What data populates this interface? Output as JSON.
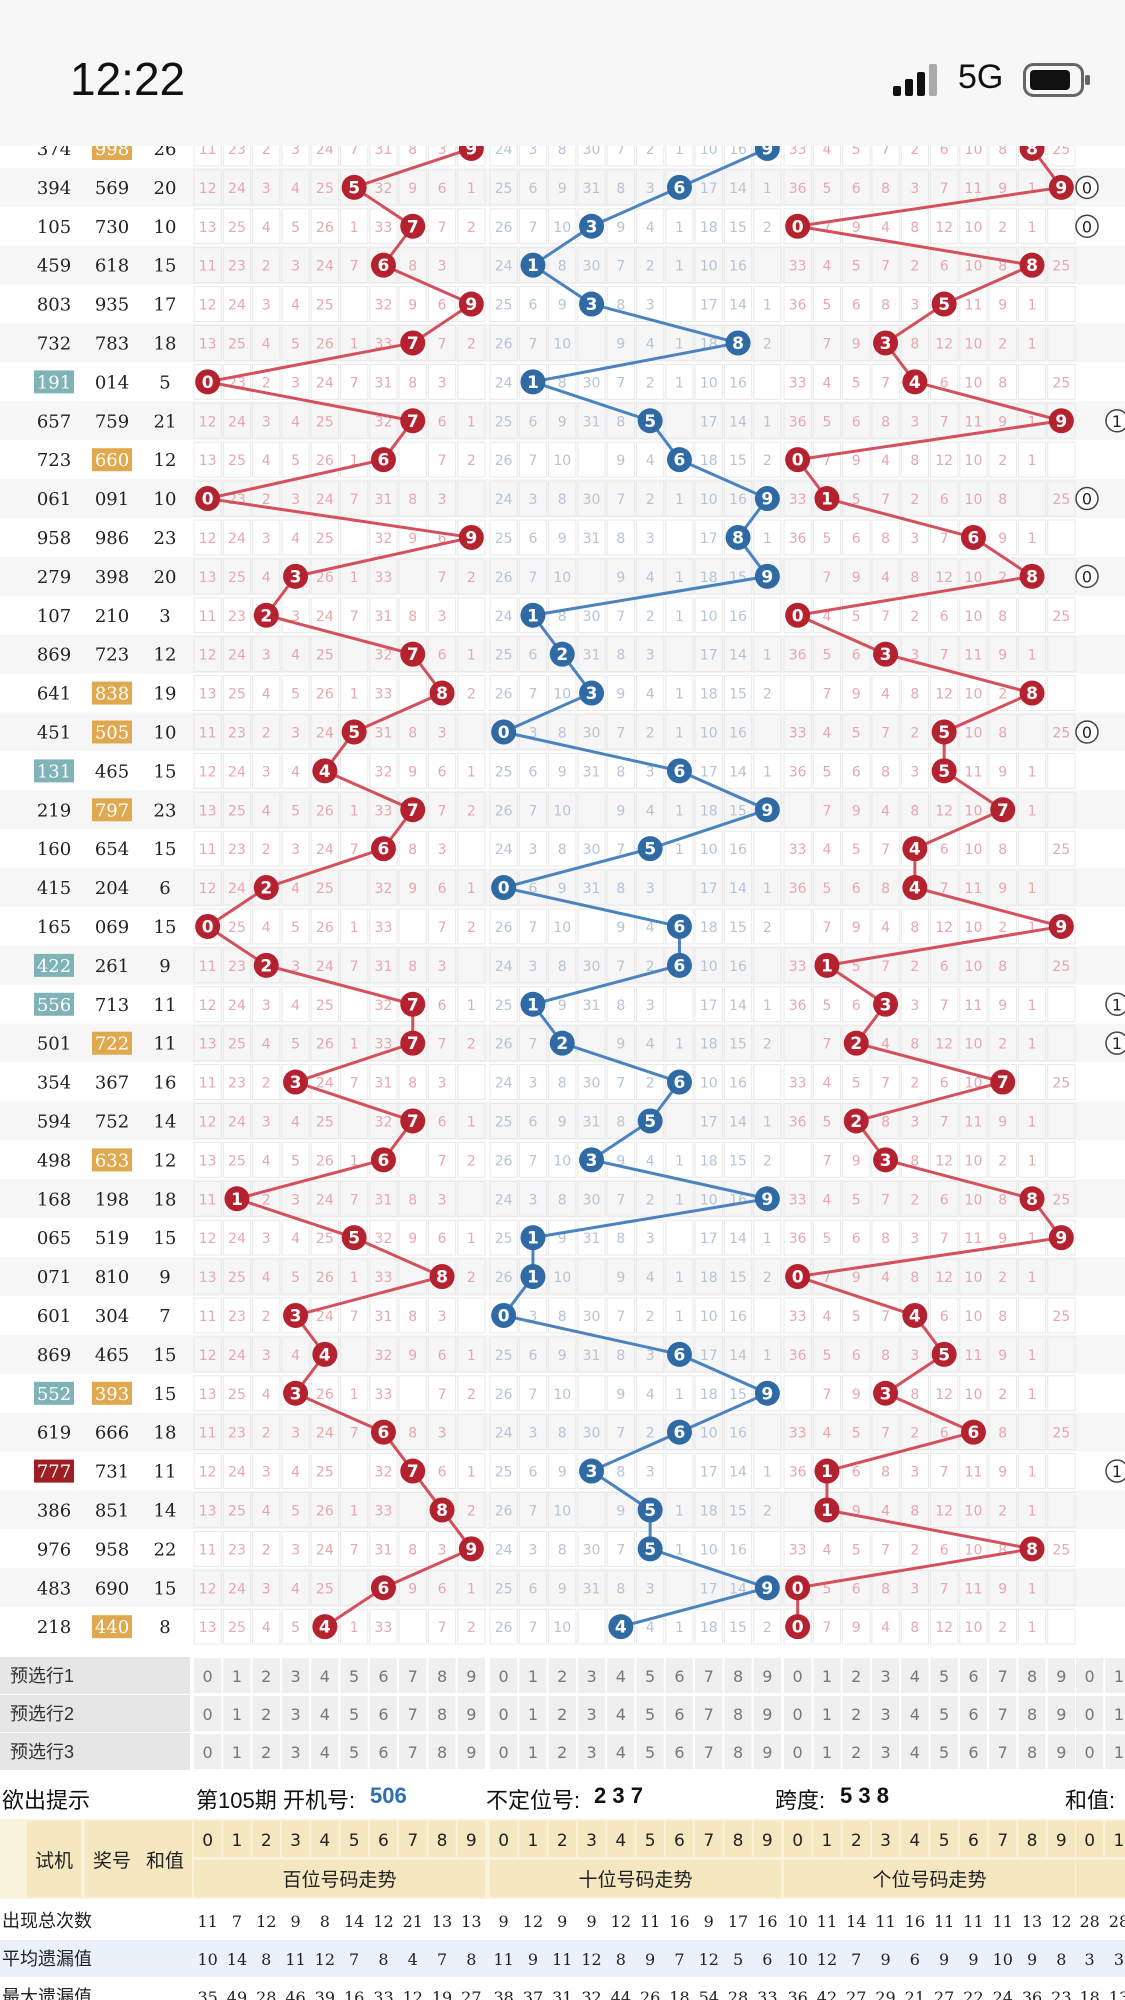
{
  "status": {
    "time": "12:22",
    "network": "5G"
  },
  "trend": {
    "rows": [
      [
        "374",
        "998",
        "26"
      ],
      [
        "394",
        "569",
        "20"
      ],
      [
        "105",
        "730",
        "10"
      ],
      [
        "459",
        "618",
        "15"
      ],
      [
        "803",
        "935",
        "17"
      ],
      [
        "732",
        "783",
        "18"
      ],
      [
        "191",
        "014",
        "5"
      ],
      [
        "657",
        "759",
        "21"
      ],
      [
        "723",
        "660",
        "12"
      ],
      [
        "061",
        "091",
        "10"
      ],
      [
        "958",
        "986",
        "23"
      ],
      [
        "279",
        "398",
        "20"
      ],
      [
        "107",
        "210",
        "3"
      ],
      [
        "869",
        "723",
        "12"
      ],
      [
        "641",
        "838",
        "19"
      ],
      [
        "451",
        "505",
        "10"
      ],
      [
        "131",
        "465",
        "15"
      ],
      [
        "219",
        "797",
        "23"
      ],
      [
        "160",
        "654",
        "15"
      ],
      [
        "415",
        "204",
        "6"
      ],
      [
        "165",
        "069",
        "15"
      ],
      [
        "422",
        "261",
        "9"
      ],
      [
        "556",
        "713",
        "11"
      ],
      [
        "501",
        "722",
        "11"
      ],
      [
        "354",
        "367",
        "16"
      ],
      [
        "594",
        "752",
        "14"
      ],
      [
        "498",
        "633",
        "12"
      ],
      [
        "168",
        "198",
        "18"
      ],
      [
        "065",
        "519",
        "15"
      ],
      [
        "071",
        "810",
        "9"
      ],
      [
        "601",
        "304",
        "7"
      ],
      [
        "869",
        "465",
        "15"
      ],
      [
        "552",
        "393",
        "15"
      ],
      [
        "619",
        "666",
        "18"
      ],
      [
        "777",
        "731",
        "11"
      ],
      [
        "386",
        "851",
        "14"
      ],
      [
        "976",
        "958",
        "22"
      ],
      [
        "483",
        "690",
        "15"
      ],
      [
        "218",
        "440",
        "8"
      ]
    ],
    "hl_test": {
      "191": "teal",
      "131": "teal",
      "422": "teal",
      "556": "teal",
      "552": "teal",
      "777": "red"
    },
    "hl_prize": {
      "998": "orange",
      "660": "orange",
      "838": "orange",
      "505": "orange",
      "797": "orange",
      "722": "orange",
      "633": "orange",
      "393": "orange",
      "440": "orange"
    },
    "miss_sample": [
      [
        "11",
        "23",
        "2",
        "3",
        "24",
        "7",
        "31",
        "8",
        "3",
        "",
        "24",
        "3",
        "8",
        "30",
        "7",
        "2",
        "1",
        "10",
        "16",
        "",
        "33",
        "4",
        "5",
        "7",
        "2",
        "6",
        "10",
        "8",
        "",
        "25",
        "11",
        "4"
      ],
      [
        "12",
        "24",
        "3",
        "4",
        "25",
        "",
        "32",
        "9",
        "6",
        "1",
        "25",
        "6",
        "9",
        "31",
        "8",
        "3",
        "",
        "17",
        "14",
        "1",
        "36",
        "5",
        "6",
        "8",
        "3",
        "7",
        "11",
        "9",
        "1",
        "",
        "12",
        "5"
      ],
      [
        "13",
        "25",
        "4",
        "5",
        "26",
        "1",
        "33",
        "",
        "7",
        "2",
        "26",
        "7",
        "10",
        "",
        "9",
        "4",
        "1",
        "18",
        "15",
        "2",
        "",
        "7",
        "9",
        "4",
        "8",
        "12",
        "10",
        "2",
        "1",
        "",
        "",
        "6"
      ]
    ],
    "colors": {
      "bai": "#b5222f",
      "bai_line": "#d3505c",
      "shi": "#2f6aa5",
      "shi_line": "#4a83c0",
      "ge": "#b5222f",
      "teal": "#7fb3b7",
      "orange": "#e0a94f",
      "redbg": "#9e1e24",
      "grid": "#e8e8e8",
      "bg_alt": "#f4f4f4",
      "miss_red": "#e7a7ae",
      "miss_blue": "#b5c4d5"
    }
  },
  "preselect": {
    "labels": [
      "预选行1",
      "预选行2",
      "预选行3"
    ],
    "digits": [
      "0",
      "1",
      "2",
      "3",
      "4",
      "5",
      "6",
      "7",
      "8",
      "9"
    ]
  },
  "hint": {
    "label": "欲出提示",
    "period": "第105期",
    "open_label": "开机号:",
    "open_num": "506",
    "pos_label": "不定位号:",
    "pos_val": "2 3 7",
    "span_label": "跨度:",
    "span_val": "5 3 8",
    "sum_label": "和值:"
  },
  "header": {
    "test": "试机",
    "prize": "奖号",
    "sum": "和值",
    "bai": "百位号码走势",
    "shi": "十位号码走势",
    "ge": "个位号码走势"
  },
  "stats": [
    {
      "label": "出现总次数",
      "bai": [
        "11",
        "7",
        "12",
        "9",
        "8",
        "14",
        "12",
        "21",
        "13",
        "13"
      ],
      "shi": [
        "9",
        "12",
        "9",
        "9",
        "12",
        "11",
        "16",
        "9",
        "17",
        "16"
      ],
      "ge": [
        "10",
        "11",
        "14",
        "11",
        "16",
        "11",
        "11",
        "11",
        "13",
        "12"
      ],
      "sum": [
        "28",
        "28"
      ]
    },
    {
      "label": "平均遗漏值",
      "bai": [
        "10",
        "14",
        "8",
        "11",
        "12",
        "7",
        "8",
        "4",
        "7",
        "8"
      ],
      "shi": [
        "11",
        "9",
        "11",
        "12",
        "8",
        "9",
        "7",
        "12",
        "5",
        "6"
      ],
      "ge": [
        "10",
        "12",
        "7",
        "9",
        "6",
        "9",
        "9",
        "10",
        "9",
        "8"
      ],
      "sum": [
        "3",
        "3"
      ]
    },
    {
      "label": "最大遗漏值",
      "bai": [
        "35",
        "49",
        "28",
        "46",
        "39",
        "16",
        "33",
        "12",
        "19",
        "27"
      ],
      "shi": [
        "38",
        "37",
        "31",
        "32",
        "44",
        "26",
        "18",
        "54",
        "28",
        "33"
      ],
      "ge": [
        "36",
        "42",
        "27",
        "29",
        "21",
        "27",
        "22",
        "24",
        "36",
        "23"
      ],
      "sum": [
        "18",
        "13"
      ]
    }
  ]
}
